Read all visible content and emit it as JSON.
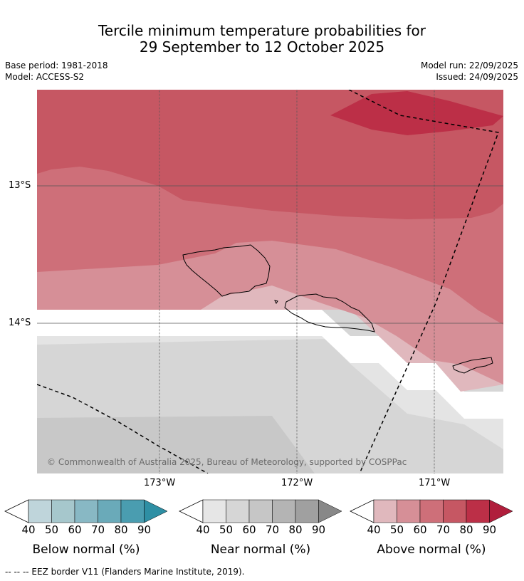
{
  "title": {
    "line1": "Tercile minimum temperature probabilities for",
    "line2": "29 September to 12 October 2025"
  },
  "meta": {
    "base_period": "Base period: 1981-2018",
    "model": "Model: ACCESS-S2",
    "model_run": "Model run: 22/09/2025",
    "issued": "Issued: 24/09/2025"
  },
  "map": {
    "lat_labels": [
      "13°S",
      "14°S"
    ],
    "lon_labels": [
      "173°W",
      "172°W",
      "171°W"
    ],
    "copyright": "© Commonwealth of Australia 2025, Bureau of Meteorology, supported by COSPPac"
  },
  "colorbars": {
    "ticks": [
      "40",
      "50",
      "60",
      "70",
      "80",
      "90"
    ],
    "below": {
      "label": "Below normal (%)",
      "colors": [
        "#bfd5db",
        "#a6c7cc",
        "#88b8c4",
        "#6aaab9",
        "#4a9db0",
        "#2e8fa4"
      ]
    },
    "near": {
      "label": "Near normal (%)",
      "colors": [
        "#e6e6e6",
        "#d6d6d6",
        "#c6c6c6",
        "#b4b4b4",
        "#a0a0a0",
        "#888888"
      ]
    },
    "above": {
      "label": "Above normal (%)",
      "colors": [
        "#e0b8bd",
        "#d68f97",
        "#ce6f79",
        "#c65763",
        "#bc2f47",
        "#b01e3c"
      ]
    }
  },
  "footer": "--  --  -- EEZ border V11 (Flanders Marine Institute, 2019)."
}
